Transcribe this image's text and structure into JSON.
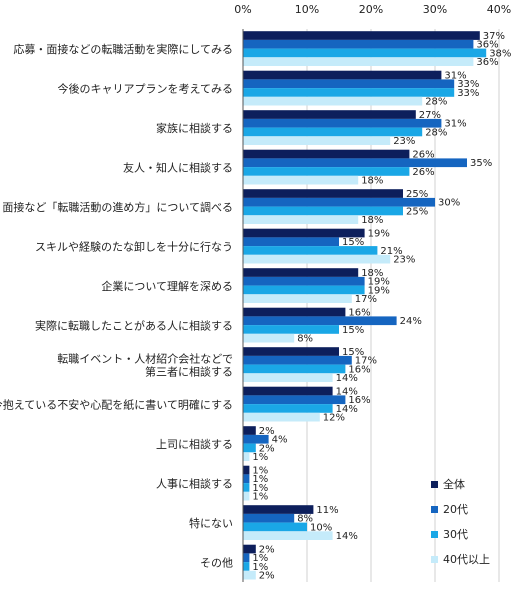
{
  "chart_data": {
    "type": "bar",
    "orientation": "horizontal",
    "xlim": [
      0,
      40
    ],
    "x_ticks": [
      "0%",
      "10%",
      "20%",
      "30%",
      "40%"
    ],
    "grid": true,
    "legend_position": "bottom-right",
    "value_suffix": "%",
    "categories": [
      "応募・面接などの転職活動を実際にしてみる",
      "今後のキャリアプランを考えてみる",
      "家族に相談する",
      "友人・知人に相談する",
      "面接など「転職活動の進め方」について調べる",
      "スキルや経験のたな卸しを十分に行なう",
      "企業について理解を深める",
      "実際に転職したことがある人に相談する",
      "転職イベント・人材紹介会社などで|第三者に相談する",
      "今抱えている不安や心配を紙に書いて明確にする",
      "上司に相談する",
      "人事に相談する",
      "特にない",
      "その他"
    ],
    "series": [
      {
        "name": "全体",
        "color": "#0d1f5c",
        "values": [
          37,
          31,
          27,
          26,
          25,
          19,
          18,
          16,
          15,
          14,
          2,
          1,
          11,
          2
        ]
      },
      {
        "name": "20代",
        "color": "#1565c0",
        "values": [
          36,
          33,
          31,
          35,
          30,
          15,
          19,
          24,
          17,
          16,
          4,
          1,
          8,
          1
        ]
      },
      {
        "name": "30代",
        "color": "#1aa7e6",
        "values": [
          38,
          33,
          28,
          26,
          25,
          21,
          19,
          15,
          16,
          14,
          2,
          1,
          10,
          1
        ]
      },
      {
        "name": "40代以上",
        "color": "#c5ebfa",
        "values": [
          36,
          28,
          23,
          18,
          18,
          23,
          17,
          8,
          14,
          12,
          1,
          1,
          14,
          2
        ]
      }
    ]
  }
}
